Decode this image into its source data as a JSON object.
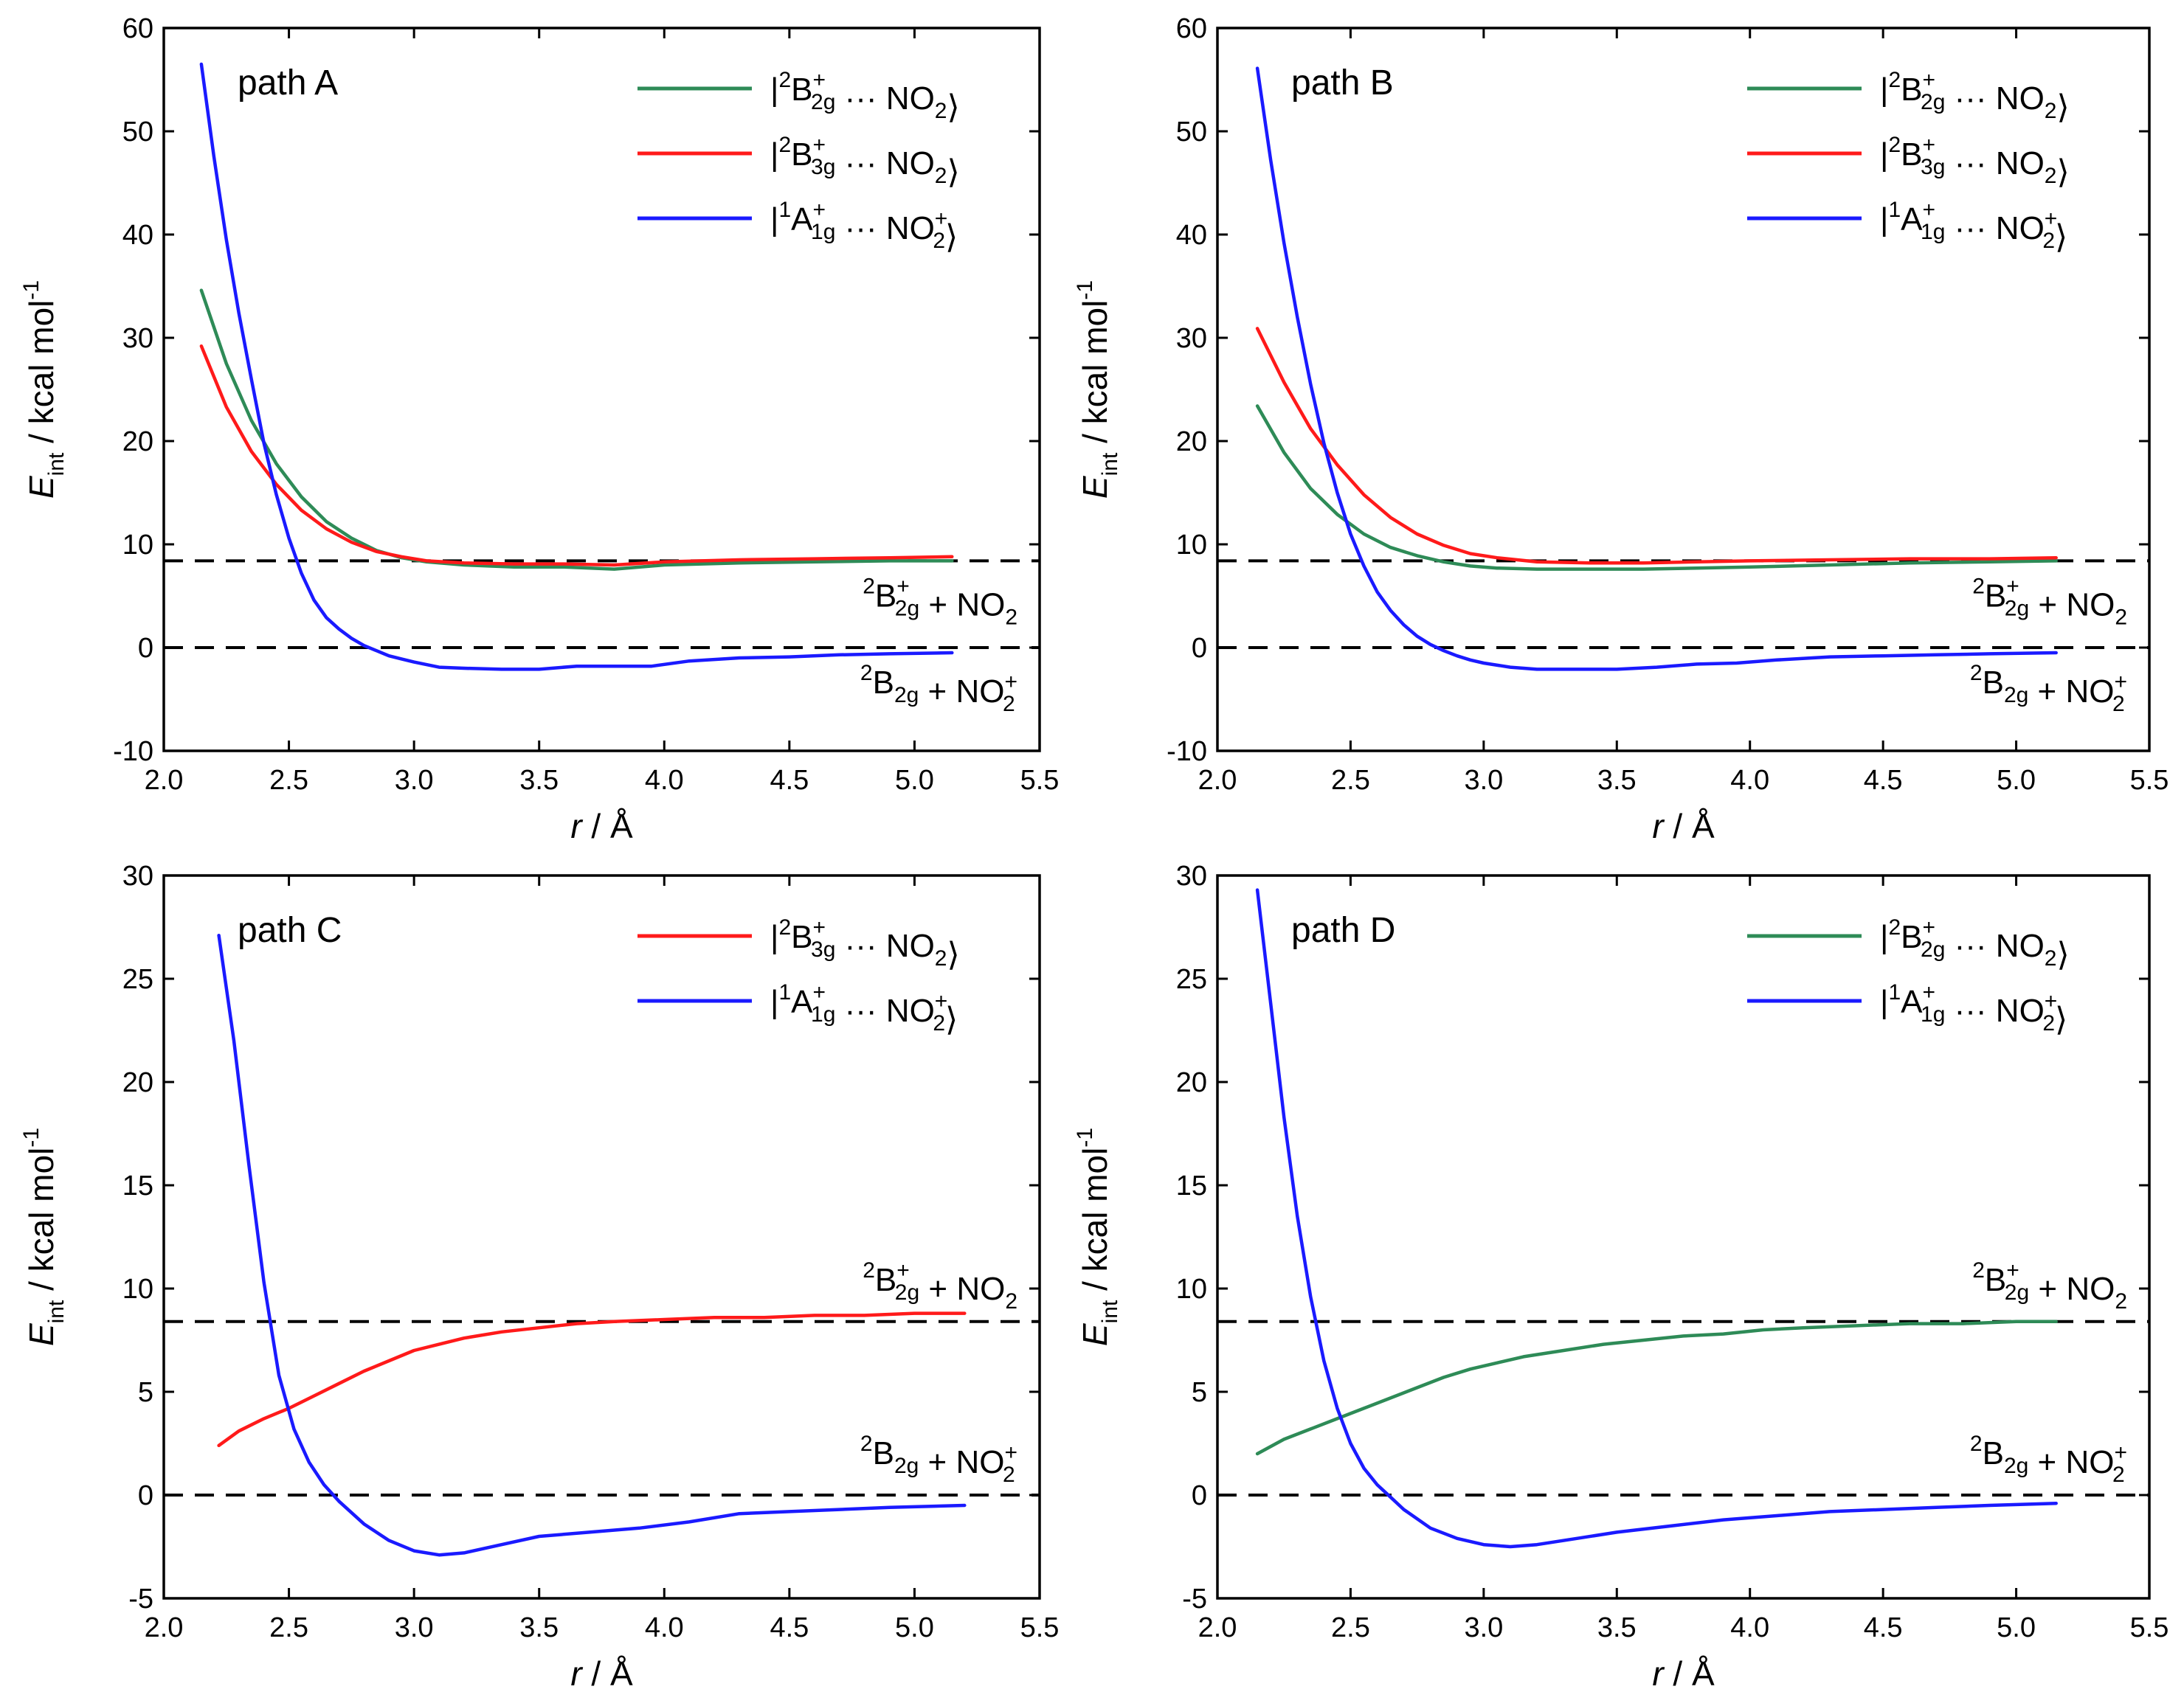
{
  "figure": {
    "colors": {
      "green": "#2e8b57",
      "red": "#ff1a1a",
      "blue": "#1a1aff",
      "axis": "#000000"
    },
    "axis_labels": {
      "x_italic": "r",
      "x_rest": " / Å",
      "y_italic": "E",
      "y_sub": "int",
      "y_rest": " / kcal mol",
      "y_sup": "-1"
    },
    "state_labels": {
      "ox_b2g": {
        "sup": "2",
        "base": "B",
        "sub": "2g",
        "sup2": "+"
      },
      "ox_b3g": {
        "sup": "2",
        "base": "B",
        "sub": "3g",
        "sup2": "+"
      },
      "red_a1g": {
        "sup": "1",
        "base": "A",
        "sub": "1g",
        "sup2": "+"
      },
      "neutral_b2g": {
        "sup": "2",
        "base": "B",
        "sub": "2g"
      },
      "dots": " ··· ",
      "no2": "NO",
      "no2_sub": "2",
      "no2_plus": "+",
      "plus_sign": " + "
    }
  },
  "chart_data": [
    {
      "type": "line",
      "title": "path A",
      "xlabel": "r / Å",
      "ylabel": "E_int / kcal mol-1",
      "xlim": [
        2.0,
        5.5
      ],
      "ylim": [
        -10,
        60
      ],
      "xticks": [
        2.0,
        2.5,
        3.0,
        3.5,
        4.0,
        4.5,
        5.0,
        5.5
      ],
      "yticks": [
        -10,
        0,
        10,
        20,
        30,
        40,
        50,
        60
      ],
      "legend_position": "top-right",
      "reference_lines": [
        {
          "y": 8.4,
          "label_key": "ox_b2g",
          "partner": "NO2",
          "label_side": "below"
        },
        {
          "y": 0,
          "label_key": "neutral_b2g",
          "partner": "NO2+",
          "label_side": "below"
        }
      ],
      "series": [
        {
          "name": "|2B2g+ ··· NO2>",
          "label_key": "ox_b2g",
          "partner": "NO2",
          "color": "#2e8b57",
          "x": [
            2.15,
            2.25,
            2.35,
            2.45,
            2.55,
            2.65,
            2.75,
            2.85,
            2.95,
            3.05,
            3.2,
            3.4,
            3.6,
            3.8,
            4.0,
            4.3,
            4.6,
            4.9,
            5.15
          ],
          "y": [
            34.6,
            27.5,
            22.0,
            17.8,
            14.6,
            12.2,
            10.6,
            9.4,
            8.7,
            8.3,
            8.0,
            7.8,
            7.8,
            7.6,
            8.0,
            8.2,
            8.3,
            8.4,
            8.4
          ]
        },
        {
          "name": "|2B3g+ ··· NO2>",
          "label_key": "ox_b3g",
          "partner": "NO2",
          "color": "#ff1a1a",
          "x": [
            2.15,
            2.25,
            2.35,
            2.45,
            2.55,
            2.65,
            2.75,
            2.85,
            2.95,
            3.05,
            3.2,
            3.4,
            3.6,
            3.8,
            4.0,
            4.3,
            4.6,
            4.9,
            5.15
          ],
          "y": [
            29.2,
            23.3,
            19.0,
            15.8,
            13.3,
            11.5,
            10.2,
            9.3,
            8.8,
            8.4,
            8.2,
            8.1,
            8.1,
            8.0,
            8.3,
            8.5,
            8.6,
            8.7,
            8.8
          ]
        },
        {
          "name": "|1A1g+ ··· NO2+>",
          "label_key": "red_a1g",
          "partner": "NO2+",
          "color": "#1a1aff",
          "x": [
            2.15,
            2.2,
            2.25,
            2.3,
            2.35,
            2.4,
            2.45,
            2.5,
            2.55,
            2.6,
            2.65,
            2.7,
            2.75,
            2.8,
            2.85,
            2.9,
            2.95,
            3.0,
            3.1,
            3.2,
            3.35,
            3.5,
            3.65,
            3.8,
            3.95,
            4.1,
            4.3,
            4.5,
            4.7,
            4.9,
            5.15
          ],
          "y": [
            56.5,
            47.6,
            39.5,
            32.4,
            26.0,
            19.8,
            14.8,
            10.6,
            7.2,
            4.6,
            2.9,
            1.8,
            0.9,
            0.2,
            -0.3,
            -0.8,
            -1.1,
            -1.4,
            -1.9,
            -2.0,
            -2.1,
            -2.1,
            -1.8,
            -1.8,
            -1.8,
            -1.3,
            -1.0,
            -0.9,
            -0.7,
            -0.6,
            -0.5
          ]
        }
      ]
    },
    {
      "type": "line",
      "title": "path B",
      "xlabel": "r / Å",
      "ylabel": "E_int / kcal mol-1",
      "xlim": [
        2.0,
        5.5
      ],
      "ylim": [
        -10,
        60
      ],
      "xticks": [
        2.0,
        2.5,
        3.0,
        3.5,
        4.0,
        4.5,
        5.0,
        5.5
      ],
      "yticks": [
        -10,
        0,
        10,
        20,
        30,
        40,
        50,
        60
      ],
      "legend_position": "top-right",
      "reference_lines": [
        {
          "y": 8.4,
          "label_key": "ox_b2g",
          "partner": "NO2",
          "label_side": "below"
        },
        {
          "y": 0,
          "label_key": "neutral_b2g",
          "partner": "NO2+",
          "label_side": "below"
        }
      ],
      "series": [
        {
          "name": "|2B2g+ ··· NO2>",
          "label_key": "ox_b2g",
          "partner": "NO2",
          "color": "#2e8b57",
          "x": [
            2.15,
            2.25,
            2.35,
            2.45,
            2.55,
            2.65,
            2.75,
            2.85,
            2.95,
            3.05,
            3.2,
            3.4,
            3.6,
            3.8,
            4.0,
            4.3,
            4.6,
            4.9,
            5.15
          ],
          "y": [
            23.4,
            18.9,
            15.4,
            12.9,
            11.0,
            9.7,
            8.9,
            8.3,
            7.9,
            7.7,
            7.6,
            7.6,
            7.6,
            7.7,
            7.8,
            8.0,
            8.2,
            8.3,
            8.4
          ]
        },
        {
          "name": "|2B3g+ ··· NO2>",
          "label_key": "ox_b3g",
          "partner": "NO2",
          "color": "#ff1a1a",
          "x": [
            2.15,
            2.25,
            2.35,
            2.45,
            2.55,
            2.65,
            2.75,
            2.85,
            2.95,
            3.05,
            3.2,
            3.4,
            3.6,
            3.8,
            4.0,
            4.3,
            4.6,
            4.9,
            5.15
          ],
          "y": [
            30.9,
            25.7,
            21.2,
            17.7,
            14.8,
            12.6,
            11.0,
            9.9,
            9.1,
            8.7,
            8.3,
            8.2,
            8.2,
            8.3,
            8.4,
            8.5,
            8.6,
            8.6,
            8.7
          ]
        },
        {
          "name": "|1A1g+ ··· NO2+>",
          "label_key": "red_a1g",
          "partner": "NO2+",
          "color": "#1a1aff",
          "x": [
            2.15,
            2.2,
            2.25,
            2.3,
            2.35,
            2.4,
            2.45,
            2.5,
            2.55,
            2.6,
            2.65,
            2.7,
            2.75,
            2.8,
            2.85,
            2.9,
            2.95,
            3.0,
            3.1,
            3.2,
            3.35,
            3.5,
            3.65,
            3.8,
            3.95,
            4.1,
            4.3,
            4.5,
            4.7,
            4.9,
            5.15
          ],
          "y": [
            56.1,
            47.2,
            39.2,
            32.0,
            25.5,
            19.8,
            15.0,
            11.0,
            7.9,
            5.4,
            3.6,
            2.2,
            1.1,
            0.3,
            -0.3,
            -0.8,
            -1.2,
            -1.5,
            -1.9,
            -2.1,
            -2.1,
            -2.1,
            -1.9,
            -1.6,
            -1.5,
            -1.2,
            -0.9,
            -0.8,
            -0.7,
            -0.6,
            -0.5
          ]
        }
      ]
    },
    {
      "type": "line",
      "title": "path C",
      "xlabel": "r / Å",
      "ylabel": "E_int / kcal mol-1",
      "xlim": [
        2.0,
        5.5
      ],
      "ylim": [
        -5,
        30
      ],
      "xticks": [
        2.0,
        2.5,
        3.0,
        3.5,
        4.0,
        4.5,
        5.0,
        5.5
      ],
      "yticks": [
        -5,
        0,
        5,
        10,
        15,
        20,
        25,
        30
      ],
      "legend_position": "top-right",
      "reference_lines": [
        {
          "y": 8.4,
          "label_key": "ox_b2g",
          "partner": "NO2",
          "label_side": "above"
        },
        {
          "y": 0,
          "label_key": "neutral_b2g",
          "partner": "NO2+",
          "label_side": "above"
        }
      ],
      "series": [
        {
          "name": "|2B3g+ ··· NO2>",
          "label_key": "ox_b3g",
          "partner": "NO2",
          "color": "#ff1a1a",
          "x": [
            2.22,
            2.3,
            2.4,
            2.5,
            2.6,
            2.7,
            2.8,
            2.9,
            3.0,
            3.1,
            3.2,
            3.35,
            3.5,
            3.65,
            3.8,
            4.0,
            4.2,
            4.4,
            4.6,
            4.8,
            5.0,
            5.2
          ],
          "y": [
            2.4,
            3.1,
            3.7,
            4.2,
            4.8,
            5.4,
            6.0,
            6.5,
            7.0,
            7.3,
            7.6,
            7.9,
            8.1,
            8.3,
            8.4,
            8.5,
            8.6,
            8.6,
            8.7,
            8.7,
            8.8,
            8.8
          ]
        },
        {
          "name": "|1A1g+ ··· NO2+>",
          "label_key": "red_a1g",
          "partner": "NO2+",
          "color": "#1a1aff",
          "x": [
            2.22,
            2.28,
            2.34,
            2.4,
            2.46,
            2.52,
            2.58,
            2.64,
            2.7,
            2.8,
            2.9,
            3.0,
            3.1,
            3.2,
            3.35,
            3.5,
            3.7,
            3.9,
            4.1,
            4.3,
            4.5,
            4.7,
            4.9,
            5.2
          ],
          "y": [
            27.1,
            22.0,
            16.0,
            10.3,
            5.8,
            3.2,
            1.6,
            0.5,
            -0.3,
            -1.4,
            -2.2,
            -2.7,
            -2.9,
            -2.8,
            -2.4,
            -2.0,
            -1.8,
            -1.6,
            -1.3,
            -0.9,
            -0.8,
            -0.7,
            -0.6,
            -0.5
          ]
        }
      ]
    },
    {
      "type": "line",
      "title": "path D",
      "xlabel": "r / Å",
      "ylabel": "E_int / kcal mol-1",
      "xlim": [
        2.0,
        5.5
      ],
      "ylim": [
        -5,
        30
      ],
      "xticks": [
        2.0,
        2.5,
        3.0,
        3.5,
        4.0,
        4.5,
        5.0,
        5.5
      ],
      "yticks": [
        -5,
        0,
        5,
        10,
        15,
        20,
        25,
        30
      ],
      "legend_position": "top-right",
      "reference_lines": [
        {
          "y": 8.4,
          "label_key": "ox_b2g",
          "partner": "NO2",
          "label_side": "above"
        },
        {
          "y": 0,
          "label_key": "neutral_b2g",
          "partner": "NO2+",
          "label_side": "above"
        }
      ],
      "series": [
        {
          "name": "|2B2g+ ··· NO2>",
          "label_key": "ox_b2g",
          "partner": "NO2",
          "color": "#2e8b57",
          "x": [
            2.15,
            2.25,
            2.35,
            2.45,
            2.55,
            2.65,
            2.75,
            2.85,
            2.95,
            3.05,
            3.15,
            3.3,
            3.45,
            3.6,
            3.75,
            3.9,
            4.05,
            4.2,
            4.4,
            4.6,
            4.8,
            5.0,
            5.15
          ],
          "y": [
            2.0,
            2.7,
            3.2,
            3.7,
            4.2,
            4.7,
            5.2,
            5.7,
            6.1,
            6.4,
            6.7,
            7.0,
            7.3,
            7.5,
            7.7,
            7.8,
            8.0,
            8.1,
            8.2,
            8.3,
            8.3,
            8.4,
            8.4
          ]
        },
        {
          "name": "|1A1g+ ··· NO2+>",
          "label_key": "red_a1g",
          "partner": "NO2+",
          "color": "#1a1aff",
          "x": [
            2.15,
            2.2,
            2.25,
            2.3,
            2.35,
            2.4,
            2.45,
            2.5,
            2.55,
            2.6,
            2.65,
            2.7,
            2.8,
            2.9,
            3.0,
            3.1,
            3.2,
            3.35,
            3.5,
            3.7,
            3.9,
            4.1,
            4.3,
            4.5,
            4.7,
            4.9,
            5.15
          ],
          "y": [
            29.3,
            23.8,
            18.3,
            13.5,
            9.6,
            6.5,
            4.2,
            2.5,
            1.3,
            0.5,
            -0.1,
            -0.7,
            -1.6,
            -2.1,
            -2.4,
            -2.5,
            -2.4,
            -2.1,
            -1.8,
            -1.5,
            -1.2,
            -1.0,
            -0.8,
            -0.7,
            -0.6,
            -0.5,
            -0.4
          ]
        }
      ]
    }
  ]
}
